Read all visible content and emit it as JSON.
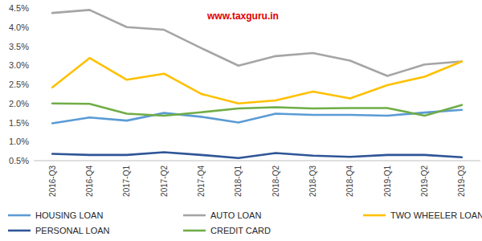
{
  "chart_data": {
    "type": "line",
    "annotations": [
      "www.taxguru.in"
    ],
    "categories": [
      "2016-Q3",
      "2016-Q4",
      "2017-Q1",
      "2017-Q2",
      "2017-Q4",
      "2018-Q1",
      "2018-Q2",
      "2018-Q3",
      "2018-Q4",
      "2019-Q1",
      "2019-Q2",
      "2019-Q3"
    ],
    "series": [
      {
        "name": "HOUSING LOAN",
        "color": "#5b9bd5",
        "values": [
          1.48,
          1.63,
          1.55,
          1.75,
          1.65,
          1.5,
          1.73,
          1.7,
          1.7,
          1.68,
          1.76,
          1.83
        ]
      },
      {
        "name": "AUTO LOAN",
        "color": "#a5a5a5",
        "values": [
          4.37,
          4.45,
          4.0,
          3.93,
          3.45,
          2.99,
          3.24,
          3.32,
          3.12,
          2.72,
          3.02,
          3.1
        ]
      },
      {
        "name": "TWO WHEELER LOAN",
        "color": "#ffc000",
        "values": [
          2.42,
          3.19,
          2.62,
          2.78,
          2.25,
          2.0,
          2.08,
          2.31,
          2.13,
          2.48,
          2.7,
          3.1
        ]
      },
      {
        "name": "PERSONAL LOAN",
        "color": "#2f5597",
        "values": [
          0.68,
          0.65,
          0.65,
          0.72,
          0.65,
          0.57,
          0.7,
          0.63,
          0.6,
          0.65,
          0.65,
          0.59
        ]
      },
      {
        "name": "CREDIT CARD",
        "color": "#70ad47",
        "values": [
          2.0,
          1.99,
          1.73,
          1.68,
          1.77,
          1.87,
          1.9,
          1.87,
          1.88,
          1.88,
          1.68,
          1.96
        ]
      }
    ],
    "ylim": [
      0.5,
      4.5
    ],
    "yticks": [
      {
        "value": 0.5,
        "label": "0.5%"
      },
      {
        "value": 1.0,
        "label": "1.0%"
      },
      {
        "value": 1.5,
        "label": "1.5%"
      },
      {
        "value": 2.0,
        "label": "2.0%"
      },
      {
        "value": 2.5,
        "label": "2.5%"
      },
      {
        "value": 3.0,
        "label": "3.0%"
      },
      {
        "value": 3.5,
        "label": "3.5%"
      },
      {
        "value": 4.0,
        "label": "4.0%"
      },
      {
        "value": 4.5,
        "label": "4.5%"
      }
    ],
    "grid": false,
    "legend": "bottom",
    "marker": "none",
    "line_style": "solid"
  }
}
